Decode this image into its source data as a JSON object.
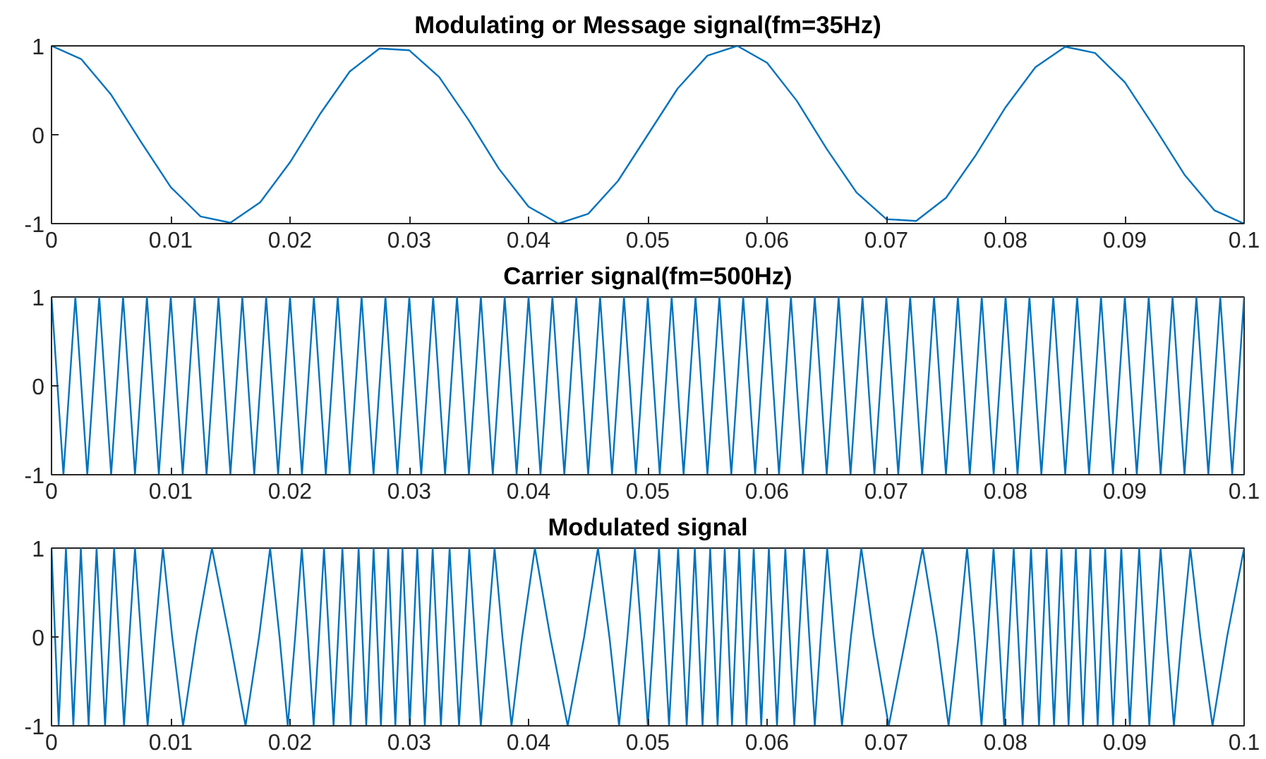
{
  "chart_data": [
    {
      "type": "line",
      "title": "Modulating or Message signal(fm=35Hz)",
      "color": "#0072bd",
      "xlim": [
        0,
        0.1
      ],
      "ylim": [
        -1,
        1
      ],
      "xticks": [
        0,
        0.01,
        0.02,
        0.03,
        0.04,
        0.05,
        0.06,
        0.07,
        0.08,
        0.09,
        0.1
      ],
      "yticks": [
        -1,
        0,
        1
      ],
      "grid": false,
      "x": [
        0,
        0.0025,
        0.005,
        0.0075,
        0.01,
        0.0125,
        0.015,
        0.0175,
        0.02,
        0.0225,
        0.025,
        0.0275,
        0.03,
        0.0325,
        0.035,
        0.0375,
        0.04,
        0.0425,
        0.045,
        0.0475,
        0.05,
        0.0525,
        0.055,
        0.0575,
        0.06,
        0.0625,
        0.065,
        0.0675,
        0.07,
        0.0725,
        0.075,
        0.0775,
        0.08,
        0.0825,
        0.085,
        0.0875,
        0.09,
        0.0925,
        0.095,
        0.0975,
        0.1
      ],
      "values": [
        1,
        0.85,
        0.45,
        -0.08,
        -0.59,
        -0.92,
        -0.99,
        -0.76,
        -0.31,
        0.23,
        0.71,
        0.97,
        0.95,
        0.65,
        0.16,
        -0.38,
        -0.81,
        -1,
        -0.89,
        -0.52,
        0,
        0.52,
        0.89,
        1,
        0.81,
        0.38,
        -0.16,
        -0.65,
        -0.95,
        -0.97,
        -0.71,
        -0.23,
        0.31,
        0.76,
        0.99,
        0.92,
        0.59,
        0.08,
        -0.45,
        -0.85,
        -1
      ]
    },
    {
      "type": "line",
      "title": "Carrier signal(fm=500Hz)",
      "color": "#0072bd",
      "xlim": [
        0,
        0.1
      ],
      "ylim": [
        -1,
        1
      ],
      "xticks": [
        0,
        0.01,
        0.02,
        0.03,
        0.04,
        0.05,
        0.06,
        0.07,
        0.08,
        0.09,
        0.1
      ],
      "yticks": [
        -1,
        0,
        1
      ],
      "grid": false,
      "x": [
        0,
        0.001,
        0.002,
        0.003,
        0.004,
        0.005,
        0.006,
        0.007,
        0.008,
        0.009,
        0.01,
        0.011,
        0.012,
        0.013,
        0.014,
        0.015,
        0.016,
        0.017,
        0.018,
        0.019,
        0.02,
        0.021,
        0.022,
        0.023,
        0.024,
        0.025,
        0.026,
        0.027,
        0.028,
        0.029,
        0.03,
        0.031,
        0.032,
        0.033,
        0.034,
        0.035,
        0.036,
        0.037,
        0.038,
        0.039,
        0.04,
        0.041,
        0.042,
        0.043,
        0.044,
        0.045,
        0.046,
        0.047,
        0.048,
        0.049,
        0.05,
        0.051,
        0.052,
        0.053,
        0.054,
        0.055,
        0.056,
        0.057,
        0.058,
        0.059,
        0.06,
        0.061,
        0.062,
        0.063,
        0.064,
        0.065,
        0.066,
        0.067,
        0.068,
        0.069,
        0.07,
        0.071,
        0.072,
        0.073,
        0.074,
        0.075,
        0.076,
        0.077,
        0.078,
        0.079,
        0.08,
        0.081,
        0.082,
        0.083,
        0.084,
        0.085,
        0.086,
        0.087,
        0.088,
        0.089,
        0.09,
        0.091,
        0.092,
        0.093,
        0.094,
        0.095,
        0.096,
        0.097,
        0.098,
        0.099,
        0.1
      ],
      "values": [
        1,
        -1,
        1,
        -1,
        1,
        -1,
        1,
        -1,
        1,
        -1,
        1,
        -1,
        1,
        -1,
        1,
        -1,
        1,
        -1,
        1,
        -1,
        1,
        -1,
        1,
        -1,
        1,
        -1,
        1,
        -1,
        1,
        -1,
        1,
        -1,
        1,
        -1,
        1,
        -1,
        1,
        -1,
        1,
        -1,
        1,
        -1,
        1,
        -1,
        1,
        -1,
        1,
        -1,
        1,
        -1,
        1,
        -1,
        1,
        -1,
        1,
        -1,
        1,
        -1,
        1,
        -1,
        1,
        -1,
        1,
        -1,
        1,
        -1,
        1,
        -1,
        1,
        -1,
        1,
        -1,
        1,
        -1,
        1,
        -1,
        1,
        -1,
        1,
        -1,
        1,
        -1,
        1,
        -1,
        1,
        -1,
        1,
        -1,
        1,
        -1,
        1,
        -1,
        1,
        -1,
        1,
        -1,
        1,
        -1,
        1,
        -1,
        1
      ]
    },
    {
      "type": "line",
      "title": "Modulated signal",
      "color": "#0072bd",
      "xlim": [
        0,
        0.1
      ],
      "ylim": [
        -1,
        1
      ],
      "xticks": [
        0,
        0.01,
        0.02,
        0.03,
        0.04,
        0.05,
        0.06,
        0.07,
        0.08,
        0.09,
        0.1
      ],
      "yticks": [
        -1,
        0,
        1
      ],
      "grid": false,
      "x": [
        0,
        0.0003,
        0.0006,
        0.00091,
        0.00121,
        0.00152,
        0.00183,
        0.00214,
        0.00246,
        0.00278,
        0.00311,
        0.00344,
        0.00378,
        0.00413,
        0.00449,
        0.00487,
        0.00525,
        0.00566,
        0.00608,
        0.00653,
        0.007,
        0.00751,
        0.00806,
        0.00867,
        0.00934,
        0.01012,
        0.01103,
        0.01213,
        0.01345,
        0.01491,
        0.01627,
        0.0174,
        0.01833,
        0.01912,
        0.01981,
        0.02043,
        0.02099,
        0.0215,
        0.02198,
        0.02243,
        0.02285,
        0.02326,
        0.02365,
        0.02403,
        0.02439,
        0.02474,
        0.02508,
        0.02542,
        0.02575,
        0.02607,
        0.02639,
        0.0267,
        0.02701,
        0.02732,
        0.02762,
        0.02793,
        0.02823,
        0.02853,
        0.02883,
        0.02913,
        0.02943,
        0.02974,
        0.03004,
        0.03035,
        0.03067,
        0.03098,
        0.0313,
        0.03163,
        0.03196,
        0.0323,
        0.03265,
        0.03301,
        0.03338,
        0.03377,
        0.03417,
        0.03459,
        0.03503,
        0.0355,
        0.036,
        0.03655,
        0.03715,
        0.03781,
        0.03857,
        0.03946,
        0.04053,
        0.04182,
        0.04328,
        0.04466,
        0.04582,
        0.04678,
        0.04759,
        0.04829,
        0.04892,
        0.04948,
        0.05,
        0.05048,
        0.05094,
        0.05137,
        0.05178,
        0.05217,
        0.05254,
        0.05291,
        0.05326,
        0.05361,
        0.05394,
        0.05427,
        0.05459,
        0.05491,
        0.05523,
        0.05554,
        0.05585,
        0.05615,
        0.05645,
        0.05676,
        0.05706,
        0.05736,
        0.05766,
        0.05796,
        0.05827,
        0.05857,
        0.05888,
        0.05919,
        0.05951,
        0.05983,
        0.06015,
        0.06049,
        0.06083,
        0.06117,
        0.06153,
        0.0619,
        0.06228,
        0.06268,
        0.0631,
        0.06354,
        0.064,
        0.0645,
        0.06504,
        0.06563,
        0.06628,
        0.06703,
        0.0679,
        0.06894,
        0.0702,
        0.07164,
        0.07304,
        0.07424,
        0.07522,
        0.07605,
        0.07677,
        0.0774,
        0.07798,
        0.0785,
        0.07899,
        0.07945,
        0.07988,
        0.08029,
        0.08068,
        0.08106,
        0.08143,
        0.08178,
        0.08213,
        0.08247,
        0.0828,
        0.08312,
        0.08344,
        0.08375,
        0.08406,
        0.08437,
        0.08468,
        0.08498,
        0.08528,
        0.08559,
        0.08589,
        0.08619,
        0.08649,
        0.08679,
        0.0871,
        0.08741,
        0.08772,
        0.08803,
        0.08835,
        0.08868,
        0.08901,
        0.08935,
        0.0897,
        0.09005,
        0.09042,
        0.0908,
        0.0912,
        0.09161,
        0.09205,
        0.09251,
        0.093,
        0.09353,
        0.09411,
        0.09476,
        0.09549,
        0.09633,
        0.09735,
        0.09857,
        0.1
      ],
      "values": [
        1,
        0,
        -1,
        0,
        1,
        0,
        -1,
        0,
        1,
        0,
        -1,
        0,
        1,
        0,
        -1,
        0,
        1,
        0,
        -1,
        0,
        1,
        0,
        -1,
        0,
        1,
        0,
        -1,
        0,
        1,
        0,
        -1,
        0,
        1,
        0,
        -1,
        0,
        1,
        0,
        -1,
        0,
        1,
        0,
        -1,
        0,
        1,
        0,
        -1,
        0,
        1,
        0,
        -1,
        0,
        1,
        0,
        -1,
        0,
        1,
        0,
        -1,
        0,
        1,
        0,
        -1,
        0,
        1,
        0,
        -1,
        0,
        1,
        0,
        -1,
        0,
        1,
        0,
        -1,
        0,
        1,
        0,
        -1,
        0,
        1,
        0,
        -1,
        0,
        1,
        0,
        -1,
        0,
        1,
        0,
        -1,
        0,
        1,
        0,
        -1,
        0,
        1,
        0,
        -1,
        0,
        1,
        0,
        -1,
        0,
        1,
        0,
        -1,
        0,
        1,
        0,
        -1,
        0,
        1,
        0,
        -1,
        0,
        1,
        0,
        -1,
        0,
        1,
        0,
        -1,
        0,
        1,
        0,
        -1,
        0,
        1,
        0,
        -1,
        0,
        1,
        0,
        -1,
        0,
        1,
        0,
        -1,
        0,
        1,
        0,
        -1,
        0,
        1,
        0,
        -1,
        0,
        1,
        0,
        -1,
        0,
        1,
        0,
        -1,
        0,
        1,
        0,
        -1,
        0,
        1,
        0,
        -1,
        0,
        1,
        0,
        -1,
        0,
        1,
        0,
        -1,
        0,
        1,
        0,
        -1,
        0,
        1,
        0,
        -1,
        0,
        1,
        0,
        -1,
        0,
        1,
        0,
        -1,
        0,
        1,
        0,
        -1,
        0,
        1,
        0,
        -1,
        0,
        1,
        0,
        -1,
        0,
        1
      ]
    }
  ]
}
